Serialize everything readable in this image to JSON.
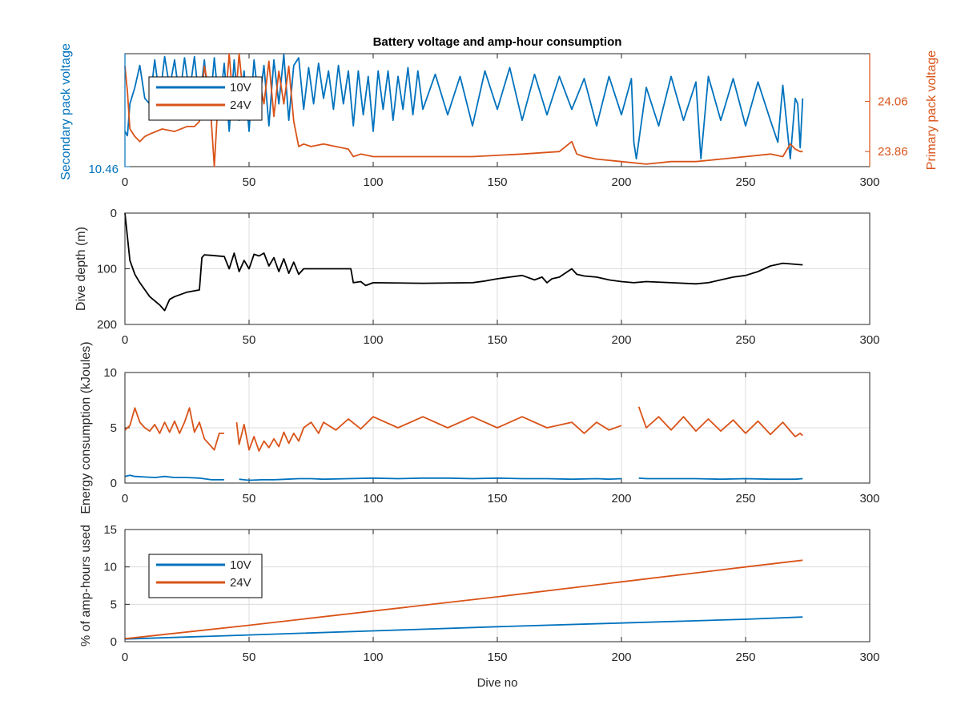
{
  "figure": {
    "title": "Battery voltage and amp-hour consumption",
    "colors": {
      "blue": "#0072BD",
      "orange": "#D95319",
      "black": "#000000",
      "grid": "#dcdcdc",
      "axis": "#262626"
    }
  },
  "chart_data": [
    {
      "type": "line",
      "title": "Battery voltage and amp-hour consumption",
      "xlabel": "",
      "xlim": [
        0,
        300
      ],
      "x_ticks": [
        "0",
        "50",
        "100",
        "150",
        "200",
        "250",
        "300"
      ],
      "ylabel_left": "Secondary pack voltage",
      "ylabel_right": "Primary pack voltage",
      "left_tick_label": "10.46",
      "right_tick_labels": [
        "24.06",
        "23.86"
      ],
      "ylim_right": [
        23.8,
        24.25
      ],
      "grid": false,
      "legend": {
        "position": "top-left",
        "entries": [
          "10V",
          "24V"
        ]
      },
      "series": [
        {
          "name": "10V",
          "axis": "left (normalized level 0-1)",
          "x": [
            0,
            1,
            2,
            4,
            6,
            8,
            10,
            12,
            14,
            16,
            18,
            20,
            22,
            24,
            26,
            28,
            30,
            32,
            34,
            36,
            38,
            40,
            42,
            44,
            46,
            48,
            50,
            52,
            54,
            56,
            58,
            60,
            62,
            64,
            66,
            68,
            70,
            72,
            74,
            76,
            78,
            80,
            82,
            84,
            86,
            88,
            90,
            92,
            94,
            96,
            98,
            100,
            102,
            104,
            106,
            108,
            110,
            112,
            114,
            116,
            118,
            120,
            125,
            130,
            135,
            140,
            145,
            150,
            155,
            160,
            165,
            170,
            175,
            180,
            185,
            190,
            195,
            200,
            204,
            205,
            206,
            210,
            215,
            220,
            225,
            230,
            232,
            235,
            240,
            245,
            250,
            255,
            260,
            263,
            265,
            268,
            270,
            271,
            272,
            273
          ],
          "values": [
            0.3,
            0.26,
            0.55,
            0.7,
            0.9,
            0.6,
            0.55,
            0.95,
            0.6,
            0.98,
            0.7,
            0.95,
            0.6,
            0.97,
            0.65,
            0.98,
            0.55,
            0.95,
            0.45,
            0.97,
            0.5,
            0.92,
            0.3,
            0.95,
            0.4,
            0.85,
            0.3,
            0.95,
            0.55,
            0.9,
            0.35,
            0.95,
            0.55,
            1.0,
            0.4,
            0.9,
            0.97,
            0.5,
            0.88,
            0.55,
            0.92,
            0.6,
            0.85,
            0.5,
            0.9,
            0.55,
            0.85,
            0.35,
            0.85,
            0.45,
            0.8,
            0.3,
            0.85,
            0.5,
            0.85,
            0.4,
            0.8,
            0.5,
            0.88,
            0.45,
            0.85,
            0.5,
            0.82,
            0.45,
            0.8,
            0.35,
            0.85,
            0.5,
            0.88,
            0.4,
            0.82,
            0.45,
            0.8,
            0.5,
            0.78,
            0.35,
            0.8,
            0.45,
            0.78,
            0.2,
            0.05,
            0.7,
            0.35,
            0.8,
            0.4,
            0.75,
            0.05,
            0.8,
            0.4,
            0.78,
            0.35,
            0.75,
            0.4,
            0.2,
            0.72,
            0.05,
            0.6,
            0.55,
            0.15,
            0.6
          ]
        },
        {
          "name": "24V",
          "axis": "right",
          "x": [
            0,
            1,
            2,
            4,
            6,
            8,
            10,
            15,
            20,
            25,
            28,
            30,
            32,
            34,
            36,
            38,
            40,
            42,
            44,
            46,
            48,
            50,
            52,
            54,
            56,
            58,
            60,
            62,
            64,
            66,
            68,
            70,
            72,
            75,
            80,
            90,
            92,
            95,
            100,
            120,
            140,
            160,
            175,
            180,
            182,
            185,
            190,
            200,
            210,
            220,
            230,
            240,
            250,
            260,
            265,
            268,
            270,
            272,
            273
          ],
          "values": [
            24.2,
            24.1,
            23.95,
            23.92,
            23.9,
            23.92,
            23.93,
            23.95,
            23.94,
            23.96,
            23.96,
            23.98,
            24.2,
            24.1,
            23.8,
            24.15,
            24.0,
            24.25,
            24.0,
            24.25,
            24.05,
            24.1,
            24.0,
            24.15,
            24.05,
            24.22,
            24.0,
            24.18,
            24.05,
            24.2,
            23.98,
            23.88,
            23.89,
            23.88,
            23.89,
            23.87,
            23.84,
            23.85,
            23.84,
            23.84,
            23.84,
            23.85,
            23.86,
            23.9,
            23.85,
            23.84,
            23.83,
            23.82,
            23.81,
            23.82,
            23.82,
            23.83,
            23.84,
            23.85,
            23.84,
            23.89,
            23.87,
            23.86,
            23.86
          ]
        }
      ]
    },
    {
      "type": "line",
      "xlim": [
        0,
        300
      ],
      "x_ticks": [
        "0",
        "50",
        "100",
        "150",
        "200",
        "250",
        "300"
      ],
      "ylabel": "Dive depth (m)",
      "ylim": [
        0,
        200
      ],
      "y_reversed": true,
      "y_ticks": [
        "0",
        "100",
        "200"
      ],
      "grid": true,
      "series": [
        {
          "name": "",
          "x": [
            0,
            2,
            4,
            6,
            10,
            14,
            16,
            18,
            20,
            25,
            30,
            31,
            32,
            35,
            40,
            42,
            44,
            46,
            48,
            50,
            52,
            54,
            56,
            58,
            60,
            62,
            64,
            66,
            68,
            70,
            72,
            80,
            90,
            91,
            92,
            95,
            97,
            100,
            120,
            140,
            145,
            150,
            155,
            160,
            165,
            168,
            170,
            172,
            175,
            180,
            182,
            185,
            190,
            195,
            200,
            205,
            210,
            220,
            230,
            235,
            240,
            245,
            250,
            255,
            260,
            265,
            270,
            273
          ],
          "values": [
            0,
            85,
            110,
            125,
            150,
            165,
            175,
            155,
            150,
            142,
            138,
            80,
            75,
            76,
            78,
            100,
            72,
            105,
            85,
            100,
            74,
            77,
            72,
            95,
            80,
            105,
            82,
            108,
            88,
            110,
            100,
            100,
            100,
            100,
            125,
            123,
            130,
            125,
            126,
            125,
            122,
            118,
            115,
            112,
            120,
            115,
            125,
            118,
            115,
            100,
            110,
            113,
            115,
            120,
            123,
            125,
            123,
            125,
            127,
            125,
            120,
            115,
            112,
            105,
            95,
            90,
            92,
            93
          ]
        }
      ]
    },
    {
      "type": "line",
      "xlim": [
        0,
        300
      ],
      "x_ticks": [
        "0",
        "50",
        "100",
        "150",
        "200",
        "250",
        "300"
      ],
      "ylabel": "Energy consumption (kJoules)",
      "ylim": [
        0,
        10
      ],
      "y_ticks": [
        "0",
        "5",
        "10"
      ],
      "grid": true,
      "series": [
        {
          "name": "10V",
          "x": [
            0,
            2,
            4,
            8,
            12,
            16,
            20,
            25,
            30,
            35,
            40,
            41,
            42,
            44,
            46,
            48,
            50,
            55,
            60,
            65,
            70,
            75,
            80,
            90,
            100,
            110,
            120,
            130,
            140,
            150,
            160,
            170,
            180,
            190,
            195,
            200,
            201,
            206,
            207,
            210,
            220,
            230,
            240,
            250,
            260,
            270,
            273
          ],
          "values": [
            0.6,
            0.7,
            0.6,
            0.55,
            0.5,
            0.6,
            0.5,
            0.5,
            0.45,
            0.3,
            0.3,
            null,
            null,
            null,
            0.35,
            0.3,
            0.25,
            0.3,
            0.3,
            0.35,
            0.4,
            0.4,
            0.35,
            0.4,
            0.45,
            0.4,
            0.45,
            0.45,
            0.4,
            0.45,
            0.4,
            0.4,
            0.35,
            0.4,
            0.35,
            0.4,
            null,
            null,
            0.45,
            0.4,
            0.4,
            0.4,
            0.35,
            0.4,
            0.35,
            0.35,
            0.4
          ]
        },
        {
          "name": "24V",
          "x": [
            0,
            2,
            4,
            6,
            8,
            10,
            12,
            14,
            16,
            18,
            20,
            22,
            24,
            26,
            28,
            30,
            32,
            34,
            36,
            38,
            40,
            41,
            42,
            45,
            46,
            48,
            50,
            52,
            54,
            56,
            58,
            60,
            62,
            64,
            66,
            68,
            70,
            72,
            75,
            78,
            80,
            85,
            90,
            95,
            100,
            110,
            120,
            130,
            140,
            150,
            160,
            170,
            180,
            185,
            190,
            195,
            200,
            201,
            206,
            207,
            210,
            215,
            220,
            225,
            230,
            235,
            240,
            245,
            250,
            255,
            260,
            265,
            270,
            272,
            273
          ],
          "values": [
            4.8,
            5.2,
            6.8,
            5.5,
            5.0,
            4.7,
            5.3,
            4.5,
            5.5,
            4.6,
            5.6,
            4.5,
            5.5,
            6.8,
            4.6,
            5.5,
            4.0,
            3.5,
            3.0,
            4.5,
            4.5,
            null,
            null,
            5.5,
            3.5,
            5.3,
            3.0,
            4.2,
            2.9,
            3.8,
            3.2,
            4.0,
            3.3,
            4.6,
            3.6,
            4.5,
            3.8,
            5.0,
            5.5,
            4.5,
            5.5,
            4.8,
            5.8,
            4.9,
            6.0,
            5.0,
            6.0,
            5.0,
            6.0,
            5.0,
            6.0,
            5.0,
            5.5,
            4.5,
            5.5,
            4.8,
            5.2,
            null,
            null,
            6.9,
            5.0,
            6.0,
            4.8,
            6.0,
            4.7,
            5.8,
            4.7,
            5.7,
            4.5,
            5.6,
            4.4,
            5.5,
            4.2,
            4.5,
            4.3
          ]
        }
      ]
    },
    {
      "type": "line",
      "xlabel": "Dive no",
      "xlim": [
        0,
        300
      ],
      "x_ticks": [
        "0",
        "50",
        "100",
        "150",
        "200",
        "250",
        "300"
      ],
      "ylabel": "% of amp-hours used",
      "ylim": [
        0,
        15
      ],
      "y_ticks": [
        "0",
        "5",
        "10",
        "15"
      ],
      "grid": true,
      "legend": {
        "position": "top-left",
        "entries": [
          "10V",
          "24V"
        ]
      },
      "series": [
        {
          "name": "10V",
          "x": [
            0,
            50,
            100,
            150,
            200,
            250,
            273
          ],
          "values": [
            0.35,
            0.9,
            1.45,
            2.0,
            2.5,
            3.0,
            3.3
          ]
        },
        {
          "name": "24V",
          "x": [
            0,
            50,
            100,
            150,
            200,
            250,
            273
          ],
          "values": [
            0.4,
            2.2,
            4.1,
            6.0,
            8.0,
            10.0,
            10.9
          ]
        }
      ]
    }
  ]
}
